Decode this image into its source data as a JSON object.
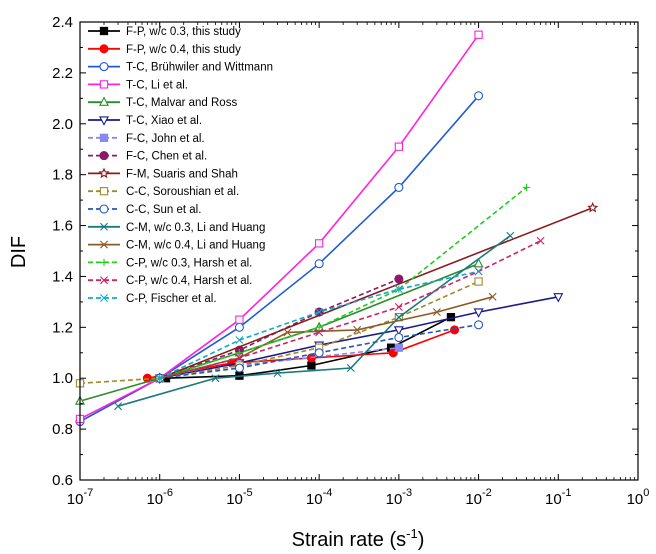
{
  "chart_data": {
    "type": "line",
    "xlabel": "Strain rate (s",
    "xlabel_sup": "-1",
    "xlabel_end": ")",
    "ylabel": "DIF",
    "x_scale": "log",
    "xlim": [
      1e-07,
      1
    ],
    "ylim": [
      0.6,
      2.4
    ],
    "x_ticks": [
      {
        "value": 1e-07,
        "base": "10",
        "exp": "-7"
      },
      {
        "value": 1e-06,
        "base": "10",
        "exp": "-6"
      },
      {
        "value": 1e-05,
        "base": "10",
        "exp": "-5"
      },
      {
        "value": 0.0001,
        "base": "10",
        "exp": "-4"
      },
      {
        "value": 0.001,
        "base": "10",
        "exp": "-3"
      },
      {
        "value": 0.01,
        "base": "10",
        "exp": "-2"
      },
      {
        "value": 0.1,
        "base": "10",
        "exp": "-1"
      },
      {
        "value": 1,
        "base": "10",
        "exp": "0"
      }
    ],
    "y_ticks": [
      {
        "value": 0.6,
        "label": "0.6"
      },
      {
        "value": 0.8,
        "label": "0.8"
      },
      {
        "value": 1.0,
        "label": "1.0"
      },
      {
        "value": 1.2,
        "label": "1.2"
      },
      {
        "value": 1.4,
        "label": "1.4"
      },
      {
        "value": 1.6,
        "label": "1.6"
      },
      {
        "value": 1.8,
        "label": "1.8"
      },
      {
        "value": 2.0,
        "label": "2.0"
      },
      {
        "value": 2.2,
        "label": "2.2"
      },
      {
        "value": 2.4,
        "label": "2.4"
      }
    ],
    "grid": false,
    "legend_position": "top-left",
    "series": [
      {
        "name": "F-P, w/c 0.3, this study",
        "color": "#000000",
        "dash": "solid",
        "marker": "square",
        "fill": true,
        "x": [
          1.2e-06,
          1e-05,
          8e-05,
          0.0008,
          0.0045
        ],
        "y": [
          1.0,
          1.01,
          1.05,
          1.12,
          1.24
        ]
      },
      {
        "name": "F-P, w/c 0.4, this study",
        "color": "#ff0000",
        "dash": "solid",
        "marker": "circle",
        "fill": true,
        "x": [
          7e-07,
          8e-06,
          8e-05,
          0.00085,
          0.005
        ],
        "y": [
          1.0,
          1.06,
          1.08,
          1.1,
          1.19
        ]
      },
      {
        "name": "T-C, Brühwiler and Wittmann",
        "color": "#1f5bd6",
        "dash": "solid",
        "marker": "circle",
        "fill": false,
        "x": [
          1e-07,
          1e-06,
          1e-05,
          0.0001,
          0.001,
          0.01
        ],
        "y": [
          0.83,
          1.0,
          1.2,
          1.45,
          1.75,
          2.11
        ]
      },
      {
        "name": "T-C, Li et al.",
        "color": "#ff22dd",
        "dash": "solid",
        "marker": "square",
        "fill": false,
        "x": [
          1e-07,
          1e-06,
          1e-05,
          0.0001,
          0.001,
          0.01
        ],
        "y": [
          0.84,
          1.0,
          1.23,
          1.53,
          1.91,
          2.35
        ]
      },
      {
        "name": "T-C, Malvar and Ross",
        "color": "#2e8b2e",
        "dash": "solid",
        "marker": "triangle-up",
        "fill": false,
        "x": [
          1e-07,
          1e-06,
          1e-05,
          0.0001,
          0.01
        ],
        "y": [
          0.91,
          1.0,
          1.1,
          1.2,
          1.45
        ]
      },
      {
        "name": "T-C, Xiao et al.",
        "color": "#1a1a8c",
        "dash": "solid",
        "marker": "triangle-down",
        "fill": false,
        "x": [
          1e-06,
          1e-05,
          0.0001,
          0.001,
          0.01,
          0.1
        ],
        "y": [
          1.0,
          1.06,
          1.13,
          1.19,
          1.26,
          1.32
        ]
      },
      {
        "name": "F-C, John et al.",
        "color": "#8888ee",
        "dash": "dash",
        "marker": "square",
        "fill": true,
        "x": [
          1e-06,
          1e-05,
          0.001
        ],
        "y": [
          1.0,
          1.05,
          1.12
        ]
      },
      {
        "name": "F-C, Chen et al.",
        "color": "#8b1a6b",
        "dash": "dash",
        "marker": "circle",
        "fill": true,
        "x": [
          1e-06,
          1e-05,
          0.0001,
          0.001
        ],
        "y": [
          1.0,
          1.11,
          1.26,
          1.39
        ]
      },
      {
        "name": "F-M, Suaris and Shah",
        "color": "#8b1a1a",
        "dash": "solid",
        "marker": "star",
        "fill": false,
        "x": [
          1e-06,
          0.27
        ],
        "y": [
          1.0,
          1.67
        ]
      },
      {
        "name": "C-C, Soroushian et al.",
        "color": "#a08a2a",
        "dash": "dash",
        "marker": "square",
        "fill": false,
        "x": [
          1e-07,
          1e-06,
          1e-05,
          0.0001,
          0.001,
          0.01
        ],
        "y": [
          0.98,
          1.0,
          1.05,
          1.12,
          1.24,
          1.38
        ]
      },
      {
        "name": "C-C, Sun et al.",
        "color": "#2255bb",
        "dash": "dash",
        "marker": "circle",
        "fill": false,
        "x": [
          1e-06,
          1e-05,
          0.0001,
          0.001,
          0.01
        ],
        "y": [
          1.0,
          1.04,
          1.1,
          1.16,
          1.21
        ]
      },
      {
        "name": "C-M, w/c 0.3, Li and Huang",
        "color": "#1a7a80",
        "dash": "solid",
        "marker": "x",
        "fill": false,
        "x": [
          3e-07,
          5e-06,
          3e-05,
          0.00025,
          0.001,
          0.025
        ],
        "y": [
          0.89,
          1.0,
          1.02,
          1.04,
          1.24,
          1.56
        ]
      },
      {
        "name": "C-M, w/c 0.4, Li and Huang",
        "color": "#8b5a2a",
        "dash": "solid",
        "marker": "x",
        "fill": false,
        "x": [
          1e-06,
          1e-05,
          4e-05,
          0.0003,
          0.003,
          0.015
        ],
        "y": [
          1.0,
          1.08,
          1.18,
          1.19,
          1.26,
          1.32
        ]
      },
      {
        "name": "C-P, w/c 0.3, Harsh et al.",
        "color": "#22cc22",
        "dash": "dash",
        "marker": "plus",
        "fill": false,
        "x": [
          1e-06,
          1e-05,
          0.0001,
          0.001,
          0.04
        ],
        "y": [
          1.0,
          1.1,
          1.2,
          1.35,
          1.75
        ]
      },
      {
        "name": "C-P, w/c 0.4, Harsh et al.",
        "color": "#cc2266",
        "dash": "dash",
        "marker": "x",
        "fill": false,
        "x": [
          1e-06,
          1e-05,
          0.0001,
          0.001,
          0.01,
          0.06
        ],
        "y": [
          1.0,
          1.08,
          1.18,
          1.28,
          1.42,
          1.54
        ]
      },
      {
        "name": "C-P, Fischer et al.",
        "color": "#11aacc",
        "dash": "dash",
        "marker": "x",
        "fill": false,
        "x": [
          1e-06,
          1e-05,
          0.0001,
          0.001,
          0.01
        ],
        "y": [
          1.0,
          1.15,
          1.26,
          1.35,
          1.42
        ]
      }
    ]
  }
}
